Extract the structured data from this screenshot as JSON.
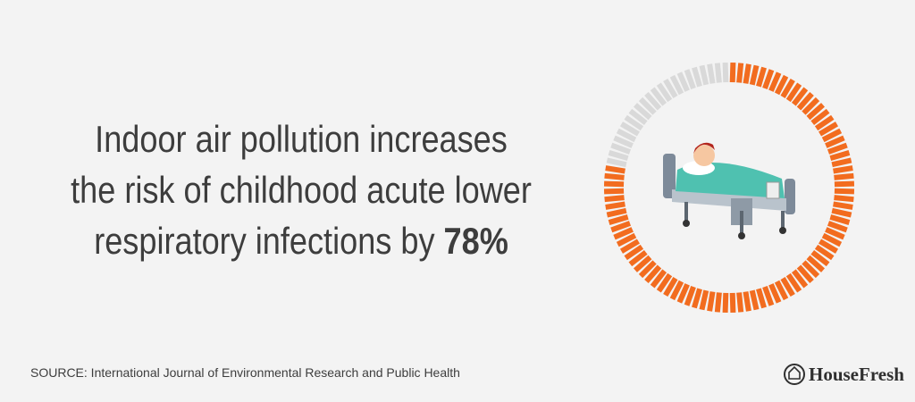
{
  "headline": {
    "lines": [
      "Indoor air pollution increases",
      "the risk of childhood acute lower",
      "respiratory infections by "
    ],
    "stat": {
      "value": 78,
      "label": "78%"
    }
  },
  "ring": {
    "color": "#f26c1f",
    "track_color": "#d9d9d9"
  },
  "source": "SOURCE: International Journal of Environmental Research and Public Health",
  "brand": "HouseFresh"
}
